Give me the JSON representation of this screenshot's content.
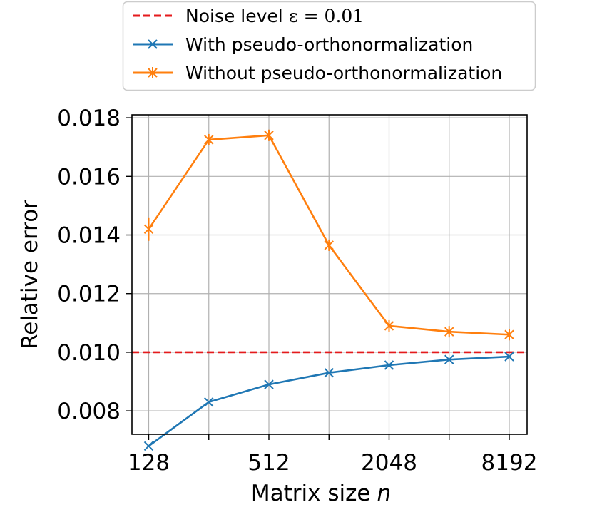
{
  "chart_data": {
    "type": "line",
    "title": "",
    "xlabel": "Matrix size",
    "xlabel_var": "n",
    "ylabel": "Relative error",
    "x_scale": "log2",
    "x": [
      128,
      256,
      512,
      1024,
      2048,
      4096,
      8192
    ],
    "x_tick_labels": [
      "128",
      "512",
      "2048",
      "8192"
    ],
    "x_tick_values": [
      128,
      512,
      2048,
      8192
    ],
    "ylim": [
      0.0072,
      0.0181
    ],
    "y_ticks": [
      0.008,
      0.01,
      0.012,
      0.014,
      0.016,
      0.018
    ],
    "y_tick_labels": [
      "0.008",
      "0.010",
      "0.012",
      "0.014",
      "0.016",
      "0.018"
    ],
    "grid": true,
    "legend_position": "top",
    "reference_line": {
      "name": "Noise level",
      "name_math": "ε = 0.01",
      "y": 0.01,
      "color": "#e41a1c",
      "style": "dashed"
    },
    "series": [
      {
        "name": "With pseudo-orthonormalization",
        "color": "#1f77b4",
        "marker": "x",
        "values": [
          0.0068,
          0.0083,
          0.0089,
          0.0093,
          0.00956,
          0.00975,
          0.00985
        ],
        "errors": [
          0,
          0,
          0,
          0,
          0,
          0,
          0
        ]
      },
      {
        "name": "Without pseudo-orthonormalization",
        "color": "#ff7f0e",
        "marker": "asterisk",
        "values": [
          0.0142,
          0.01725,
          0.0174,
          0.01365,
          0.0109,
          0.0107,
          0.0106
        ],
        "errors": [
          0.0004,
          0.0001,
          0.0001,
          0.0001,
          5e-05,
          5e-05,
          5e-05
        ]
      }
    ]
  }
}
